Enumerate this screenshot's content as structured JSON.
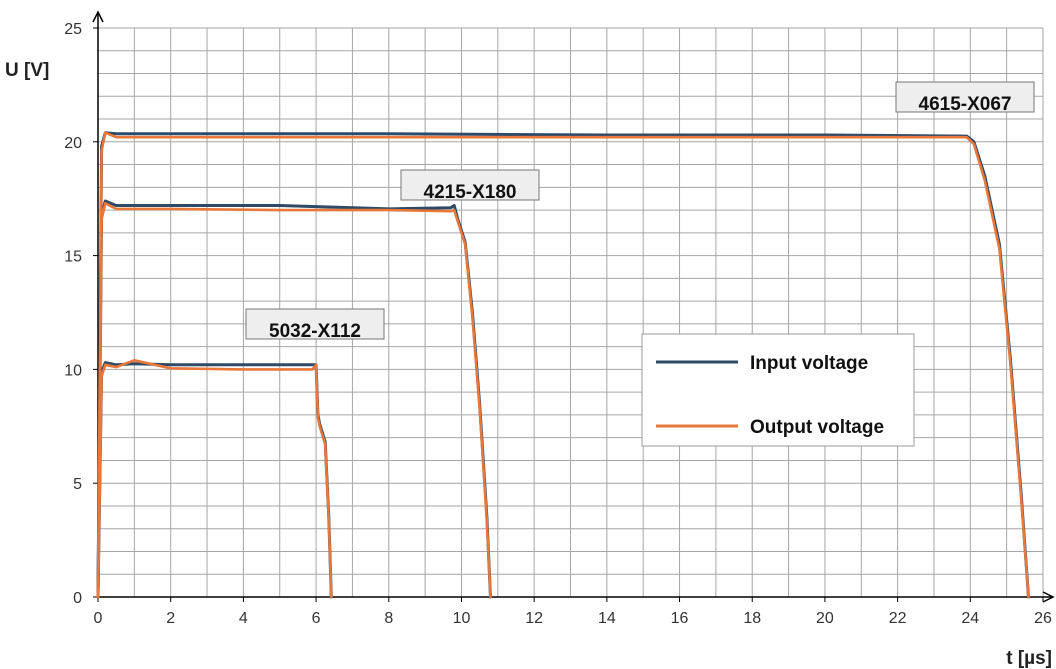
{
  "chart_data": {
    "type": "line",
    "xlabel": "t [µs]",
    "ylabel": "U [V]",
    "xlim": [
      0,
      26
    ],
    "ylim": [
      0,
      25
    ],
    "xticks": [
      0,
      2,
      4,
      6,
      8,
      10,
      12,
      14,
      16,
      18,
      20,
      22,
      24,
      26
    ],
    "yticks": [
      0,
      5,
      10,
      15,
      20,
      25
    ],
    "grid": true,
    "legend": {
      "position": "right",
      "entries": [
        "Input voltage",
        "Output voltage"
      ]
    },
    "colors": {
      "input": "#2e4a66",
      "output": "#e8773a",
      "grid": "#a6a6a6"
    },
    "annotations": [
      {
        "text": "4615-X067",
        "x": 24.0,
        "y": 20.3
      },
      {
        "text": "4215-X180",
        "x": 9.8,
        "y": 17.1
      },
      {
        "text": "5032-X112",
        "x": 6.0,
        "y": 10.1
      }
    ],
    "series": [
      {
        "name": "Input voltage",
        "group": "4615-X067",
        "x": [
          0,
          0.1,
          0.2,
          0.5,
          2,
          8,
          14,
          20,
          23.9,
          24.1,
          24.4,
          24.8,
          25.1,
          25.4,
          25.6
        ],
        "y": [
          0,
          19.8,
          20.4,
          20.35,
          20.35,
          20.35,
          20.3,
          20.3,
          20.25,
          20.0,
          18.5,
          15.5,
          10.5,
          4.5,
          0
        ]
      },
      {
        "name": "Output voltage",
        "group": "4615-X067",
        "x": [
          0,
          0.1,
          0.2,
          0.5,
          2,
          8,
          14,
          20,
          23.9,
          24.1,
          24.4,
          24.8,
          25.1,
          25.4,
          25.6
        ],
        "y": [
          0,
          19.6,
          20.4,
          20.2,
          20.2,
          20.2,
          20.2,
          20.2,
          20.2,
          19.9,
          18.3,
          15.3,
          10.3,
          4.3,
          0
        ]
      },
      {
        "name": "Input voltage",
        "group": "4215-X180",
        "x": [
          0,
          0.1,
          0.2,
          0.5,
          2,
          5,
          8,
          9.7,
          9.8,
          9.9,
          10.1,
          10.3,
          10.5,
          10.7,
          10.8
        ],
        "y": [
          0,
          16.8,
          17.4,
          17.2,
          17.2,
          17.2,
          17.05,
          17.1,
          17.2,
          16.6,
          15.6,
          12.5,
          8.5,
          3.5,
          0
        ]
      },
      {
        "name": "Output voltage",
        "group": "4215-X180",
        "x": [
          0,
          0.1,
          0.2,
          0.5,
          2,
          5,
          8,
          9.7,
          9.8,
          9.9,
          10.1,
          10.3,
          10.5,
          10.7,
          10.8
        ],
        "y": [
          0,
          16.6,
          17.3,
          17.05,
          17.05,
          17.0,
          17.0,
          16.95,
          17.0,
          16.5,
          15.5,
          12.3,
          8.3,
          3.3,
          0
        ]
      },
      {
        "name": "Input voltage",
        "group": "5032-X112",
        "x": [
          0,
          0.1,
          0.2,
          0.5,
          1,
          2,
          4,
          5.9,
          6.0,
          6.05,
          6.1,
          6.25,
          6.35,
          6.42
        ],
        "y": [
          0,
          9.9,
          10.3,
          10.2,
          10.25,
          10.2,
          10.2,
          10.2,
          10.2,
          8.0,
          7.6,
          6.8,
          3.5,
          0
        ]
      },
      {
        "name": "Output voltage",
        "group": "5032-X112",
        "x": [
          0,
          0.1,
          0.2,
          0.5,
          1,
          2,
          4,
          5.9,
          6.0,
          6.05,
          6.1,
          6.25,
          6.35,
          6.42
        ],
        "y": [
          0,
          9.7,
          10.2,
          10.1,
          10.4,
          10.05,
          10.0,
          10.0,
          10.2,
          7.9,
          7.5,
          6.7,
          3.4,
          0
        ]
      }
    ]
  }
}
